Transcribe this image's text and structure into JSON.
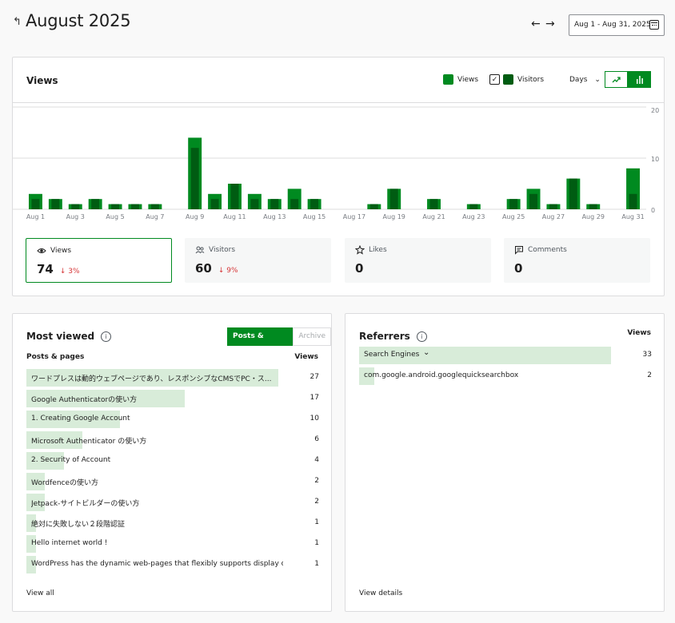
{
  "header": {
    "back_icon": "back-arrow-icon",
    "title": "August 2025",
    "prev_icon": "arrow-left-icon",
    "next_icon": "arrow-right-icon",
    "date_range": "Aug 1 - Aug 31, 2025"
  },
  "chart_card": {
    "title": "Views",
    "legend_views": "Views",
    "legend_visitors": "Visitors",
    "period": "Days",
    "colors": {
      "views": "#008a20",
      "visitors": "#005c12",
      "grid": "#dcdcde"
    }
  },
  "chart_data": {
    "type": "bar",
    "categories": [
      "Aug 1",
      "Aug 2",
      "Aug 3",
      "Aug 4",
      "Aug 5",
      "Aug 6",
      "Aug 7",
      "Aug 8",
      "Aug 9",
      "Aug 10",
      "Aug 11",
      "Aug 12",
      "Aug 13",
      "Aug 14",
      "Aug 15",
      "Aug 16",
      "Aug 17",
      "Aug 18",
      "Aug 19",
      "Aug 20",
      "Aug 21",
      "Aug 22",
      "Aug 23",
      "Aug 24",
      "Aug 25",
      "Aug 26",
      "Aug 27",
      "Aug 28",
      "Aug 29",
      "Aug 30",
      "Aug 31"
    ],
    "tick_labels": [
      "Aug 1",
      "Aug 3",
      "Aug 5",
      "Aug 7",
      "Aug 9",
      "Aug 11",
      "Aug 13",
      "Aug 15",
      "Aug 17",
      "Aug 19",
      "Aug 21",
      "Aug 23",
      "Aug 25",
      "Aug 27",
      "Aug 29",
      "Aug 31"
    ],
    "series": [
      {
        "name": "Views",
        "values": [
          3,
          2,
          1,
          2,
          1,
          1,
          1,
          0,
          14,
          3,
          5,
          3,
          2,
          4,
          2,
          0,
          0,
          1,
          4,
          0,
          2,
          0,
          1,
          0,
          2,
          4,
          1,
          6,
          1,
          0,
          8
        ]
      },
      {
        "name": "Visitors",
        "values": [
          2,
          2,
          1,
          2,
          1,
          1,
          1,
          0,
          12,
          2,
          5,
          2,
          2,
          2,
          2,
          0,
          0,
          1,
          4,
          0,
          2,
          0,
          1,
          0,
          2,
          3,
          1,
          6,
          1,
          0,
          3
        ]
      }
    ],
    "ylim": [
      0,
      20
    ],
    "yticks": [
      "0",
      "10",
      "20"
    ],
    "grid": true
  },
  "stats": [
    {
      "label": "Views",
      "value": "74",
      "delta": "3%",
      "icon": "eye-icon"
    },
    {
      "label": "Visitors",
      "value": "60",
      "delta": "9%",
      "icon": "people-icon"
    },
    {
      "label": "Likes",
      "value": "0",
      "delta": "",
      "icon": "star-icon"
    },
    {
      "label": "Comments",
      "value": "0",
      "delta": "",
      "icon": "comment-icon"
    }
  ],
  "most_viewed": {
    "title": "Most viewed",
    "tab_active": "Posts & pages",
    "tab_inactive": "Archive",
    "col_left": "Posts & pages",
    "col_right": "Views",
    "max": 27,
    "rows": [
      {
        "label": "ワードプレスは動的ウェブページであり、レスポンシブなCMSでPC・ス...",
        "value": "27",
        "views": 27
      },
      {
        "label": "Google Authenticatorの使い方",
        "value": "17",
        "views": 17
      },
      {
        "label": "1. Creating Google Account",
        "value": "10",
        "views": 10
      },
      {
        "label": "Microsoft Authenticator の使い方",
        "value": "6",
        "views": 6
      },
      {
        "label": "2. Security of Account",
        "value": "4",
        "views": 4
      },
      {
        "label": "Wordfenceの使い方",
        "value": "2",
        "views": 2
      },
      {
        "label": "Jetpack-サイトビルダーの使い方",
        "value": "2",
        "views": 2
      },
      {
        "label": "絶対に失敗しない２段階認証",
        "value": "1",
        "views": 1
      },
      {
        "label": "Hello internet world !",
        "value": "1",
        "views": 1
      },
      {
        "label": "WordPress has the dynamic web-pages that flexibly supports display o...",
        "value": "1",
        "views": 1
      }
    ],
    "link": "View all"
  },
  "referrers": {
    "title": "Referrers",
    "col_right": "Views",
    "max": 33,
    "rows": [
      {
        "label": "Search Engines",
        "value": "33",
        "views": 33,
        "expandable": true
      },
      {
        "label": "com.google.android.googlequicksearchbox",
        "value": "2",
        "views": 2,
        "expandable": false
      }
    ],
    "link": "View details"
  }
}
